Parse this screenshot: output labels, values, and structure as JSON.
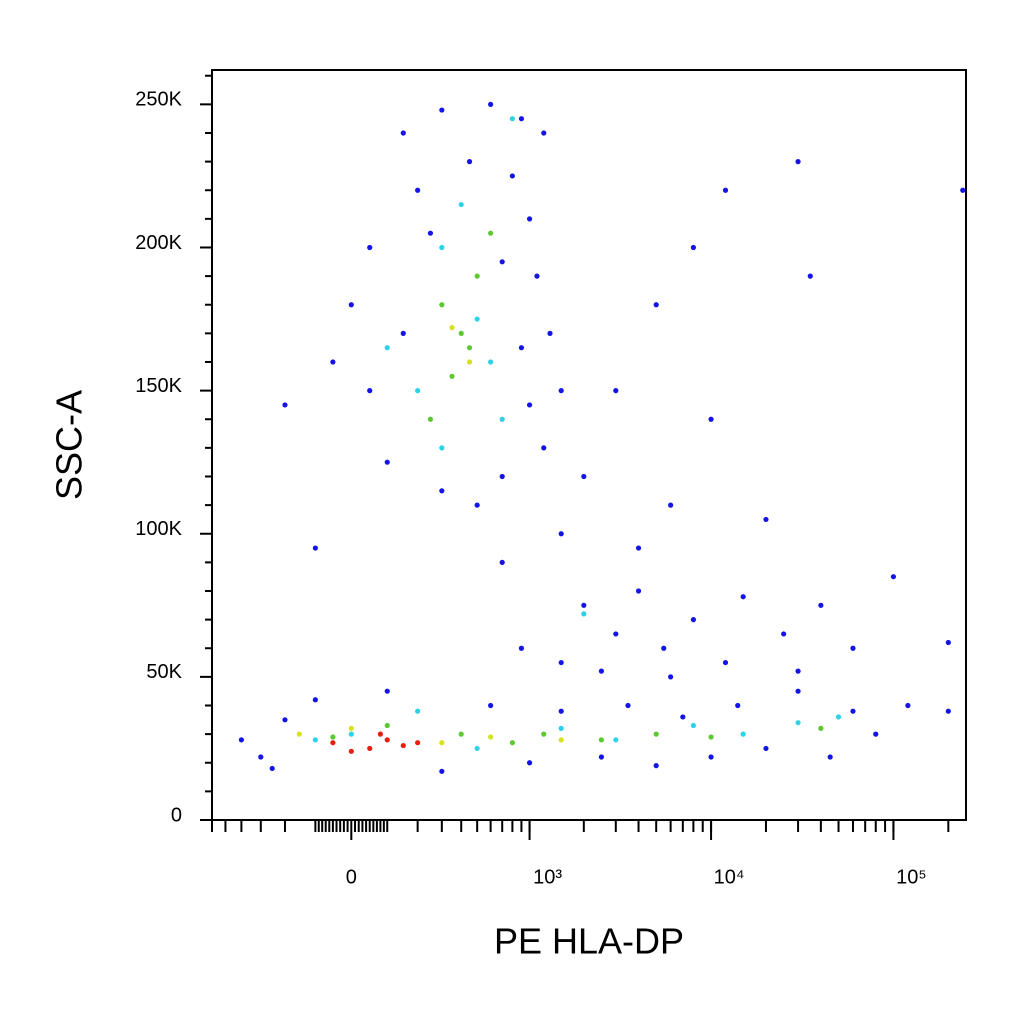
{
  "chart_data": {
    "type": "scatter",
    "x_label": "PE  HLA-DP",
    "y_label": "SSC-A",
    "x_scale": "biexponential",
    "xlim": [
      -600,
      250000
    ],
    "ylim": [
      0,
      262000
    ],
    "xticks": [
      0,
      {
        "value": 1000,
        "label": "10³"
      },
      {
        "value": 10000,
        "label": "10⁴"
      },
      {
        "value": 100000,
        "label": "10⁵"
      }
    ],
    "yticks": [
      0,
      {
        "value": 50000,
        "label": "50K"
      },
      {
        "value": 100000,
        "label": "100K"
      },
      {
        "value": 150000,
        "label": "150K"
      },
      {
        "value": 200000,
        "label": "200K"
      },
      {
        "value": 250000,
        "label": "250K"
      }
    ],
    "series": [
      {
        "color": "#1414e6",
        "x": [
          150,
          300,
          600,
          900,
          1200,
          200,
          450,
          800,
          1000,
          50,
          250,
          700,
          1100,
          0,
          150,
          900,
          1300,
          50,
          1000,
          1200,
          100,
          300,
          500,
          700,
          -50,
          1500,
          -400,
          -300,
          -200,
          -100,
          -250,
          100,
          300,
          600,
          1000,
          1500,
          2500,
          3500,
          5000,
          7000,
          10000,
          14000,
          20000,
          30000,
          45000,
          60000,
          80000,
          120000,
          200000,
          1500,
          2000,
          3000,
          4000,
          5500,
          8000,
          12000,
          15000,
          25000,
          40000,
          60000,
          100000,
          6000,
          2500,
          900,
          30000,
          200000,
          1500,
          2000,
          3000,
          5000,
          8000,
          12000,
          30000,
          35000,
          10000,
          6000,
          -100,
          -200,
          20000,
          240000,
          4000,
          700
        ],
        "values": [
          240000,
          248000,
          250000,
          245000,
          240000,
          220000,
          230000,
          225000,
          210000,
          200000,
          205000,
          195000,
          190000,
          180000,
          170000,
          165000,
          170000,
          150000,
          145000,
          130000,
          125000,
          115000,
          110000,
          120000,
          160000,
          150000,
          28000,
          22000,
          35000,
          42000,
          18000,
          45000,
          17000,
          40000,
          20000,
          38000,
          22000,
          40000,
          19000,
          36000,
          22000,
          40000,
          25000,
          45000,
          22000,
          38000,
          30000,
          40000,
          38000,
          55000,
          75000,
          65000,
          80000,
          60000,
          70000,
          55000,
          78000,
          65000,
          75000,
          60000,
          85000,
          50000,
          52000,
          60000,
          52000,
          62000,
          100000,
          120000,
          150000,
          180000,
          200000,
          220000,
          230000,
          190000,
          140000,
          110000,
          95000,
          145000,
          105000,
          220000,
          95000,
          90000
        ]
      },
      {
        "color": "#2ed2e6",
        "x": [
          300,
          500,
          200,
          700,
          400,
          600,
          300,
          0,
          200,
          500,
          1500,
          3000,
          8000,
          15000,
          30000,
          50000,
          -100,
          2000,
          800,
          100
        ],
        "values": [
          200000,
          175000,
          150000,
          140000,
          215000,
          160000,
          130000,
          30000,
          38000,
          25000,
          32000,
          28000,
          33000,
          30000,
          34000,
          36000,
          28000,
          72000,
          245000,
          165000
        ]
      },
      {
        "color": "#5cc832",
        "x": [
          300,
          450,
          350,
          500,
          250,
          400,
          -50,
          100,
          400,
          800,
          1200,
          2500,
          5000,
          10000,
          40000,
          600
        ],
        "values": [
          180000,
          165000,
          155000,
          190000,
          140000,
          170000,
          29000,
          33000,
          30000,
          27000,
          30000,
          28000,
          30000,
          29000,
          32000,
          205000
        ]
      },
      {
        "color": "#d6e21e",
        "x": [
          350,
          450,
          0,
          300,
          600,
          1500,
          -150
        ],
        "values": [
          172000,
          160000,
          32000,
          27000,
          29000,
          28000,
          30000
        ]
      },
      {
        "color": "#e61e10",
        "x": [
          -50,
          50,
          100,
          150,
          0,
          200,
          80
        ],
        "values": [
          27000,
          25000,
          28000,
          26000,
          24000,
          27000,
          30000
        ]
      }
    ]
  }
}
